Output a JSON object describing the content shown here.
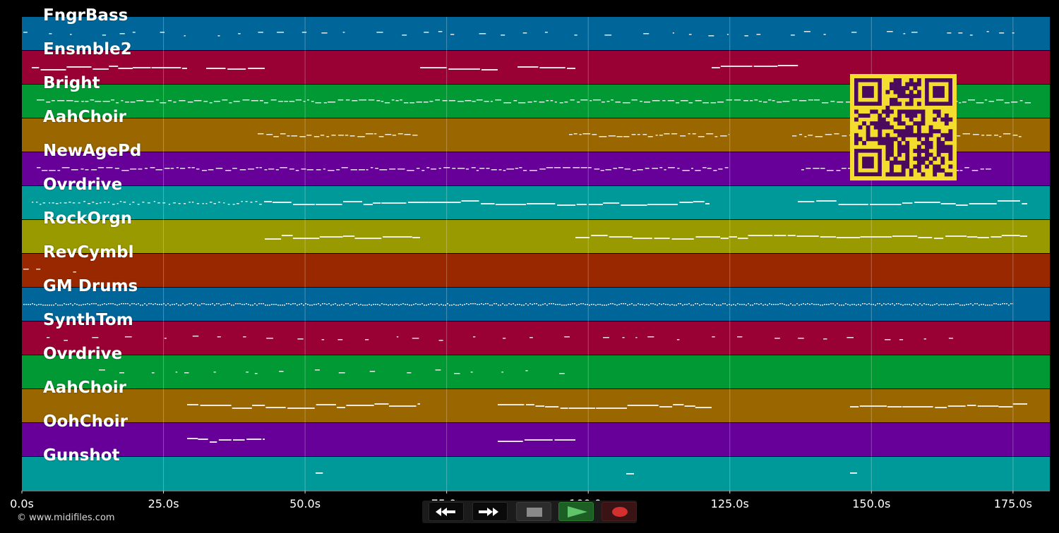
{
  "tracks": [
    {
      "name": "FngrBass",
      "color": "#006699"
    },
    {
      "name": "Ensmble2",
      "color": "#990033"
    },
    {
      "name": "Bright",
      "color": "#009933"
    },
    {
      "name": "AahChoir",
      "color": "#996600"
    },
    {
      "name": "NewAgePd",
      "color": "#660099"
    },
    {
      "name": "Ovrdrive",
      "color": "#009999"
    },
    {
      "name": "RockOrgn",
      "color": "#999900"
    },
    {
      "name": "RevCymbl",
      "color": "#992800"
    },
    {
      "name": "GM Drums",
      "color": "#006699"
    },
    {
      "name": "SynthTom",
      "color": "#990033"
    },
    {
      "name": "Ovrdrive",
      "color": "#009933"
    },
    {
      "name": "AahChoir",
      "color": "#996600"
    },
    {
      "name": "OohChoir",
      "color": "#660099"
    },
    {
      "name": "Gunshot",
      "color": "#009999"
    }
  ],
  "timeline": {
    "ticks": [
      "0.0s",
      "25.0s",
      "50.0s",
      "75.0s",
      "100.0s",
      "125.0s",
      "150.0s",
      "175.0s"
    ],
    "tick_values": [
      0,
      25,
      50,
      75,
      100,
      125,
      150,
      175
    ],
    "range": [
      0,
      181.5
    ]
  },
  "footer": {
    "copyright": "© www.midifiles.com"
  },
  "transport": {
    "buttons": [
      {
        "id": "rewind",
        "icon": "rewind-icon"
      },
      {
        "id": "fast-forward",
        "icon": "fast-forward-icon"
      },
      {
        "id": "stop",
        "icon": "stop-icon",
        "color": "#8a8a8a"
      },
      {
        "id": "play",
        "icon": "play-icon",
        "color": "#5fc46a"
      },
      {
        "id": "record",
        "icon": "record-icon",
        "color": "#d53030"
      }
    ]
  },
  "qr_code": {
    "icon": "qr-code-icon",
    "background": "#f5dd2e",
    "foreground": "#4a0a5e"
  }
}
